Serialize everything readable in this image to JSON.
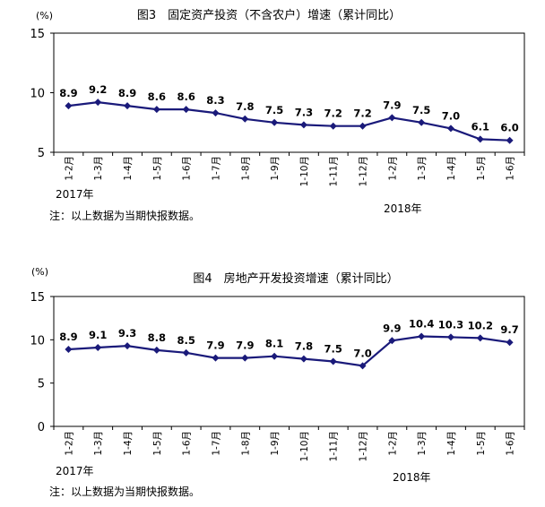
{
  "chart_data": [
    {
      "type": "line",
      "title": "图3　固定资产投资（不含农户）增速（累计同比）",
      "unit": "(%)",
      "categories": [
        "1-2月",
        "1-3月",
        "1-4月",
        "1-5月",
        "1-6月",
        "1-7月",
        "1-8月",
        "1-9月",
        "1-10月",
        "1-11月",
        "1-12月",
        "1-2月",
        "1-3月",
        "1-4月",
        "1-5月",
        "1-6月"
      ],
      "series": [
        {
          "values": [
            8.9,
            9.2,
            8.9,
            8.6,
            8.6,
            8.3,
            7.8,
            7.5,
            7.3,
            7.2,
            7.2,
            7.9,
            7.5,
            7.0,
            6.1,
            6.0
          ]
        }
      ],
      "data_labels": [
        "8.9",
        "9.2",
        "8.9",
        "8.6",
        "8.6",
        "8.3",
        "7.8",
        "7.5",
        "7.3",
        "7.2",
        "7.2",
        "7.9",
        "7.5",
        "7.0",
        "6.1",
        "6.0"
      ],
      "yticks": [
        "15",
        "10",
        "5"
      ],
      "ylim": [
        5,
        15
      ],
      "year_labels": [
        "2017年",
        "2018年"
      ],
      "note": "注：以上数据为当期快报数据。",
      "grid": false,
      "line_color": "#1a1a7a"
    },
    {
      "type": "line",
      "title": "图4　房地产开发投资增速（累计同比）",
      "unit": "(%)",
      "categories": [
        "1-2月",
        "1-3月",
        "1-4月",
        "1-5月",
        "1-6月",
        "1-7月",
        "1-8月",
        "1-9月",
        "1-10月",
        "1-11月",
        "1-12月",
        "1-2月",
        "1-3月",
        "1-4月",
        "1-5月",
        "1-6月"
      ],
      "series": [
        {
          "values": [
            8.9,
            9.1,
            9.3,
            8.8,
            8.5,
            7.9,
            7.9,
            8.1,
            7.8,
            7.5,
            7.0,
            9.9,
            10.4,
            10.3,
            10.2,
            9.7
          ]
        }
      ],
      "data_labels": [
        "8.9",
        "9.1",
        "9.3",
        "8.8",
        "8.5",
        "7.9",
        "7.9",
        "8.1",
        "7.8",
        "7.5",
        "7.0",
        "9.9",
        "10.4",
        "10.3",
        "10.2",
        "9.7"
      ],
      "yticks": [
        "15",
        "10",
        "5",
        "0"
      ],
      "ylim": [
        0,
        15
      ],
      "year_labels": [
        "2017年",
        "2018年"
      ],
      "note": "注：以上数据为当期快报数据。",
      "grid": false,
      "line_color": "#1a1a7a"
    }
  ]
}
